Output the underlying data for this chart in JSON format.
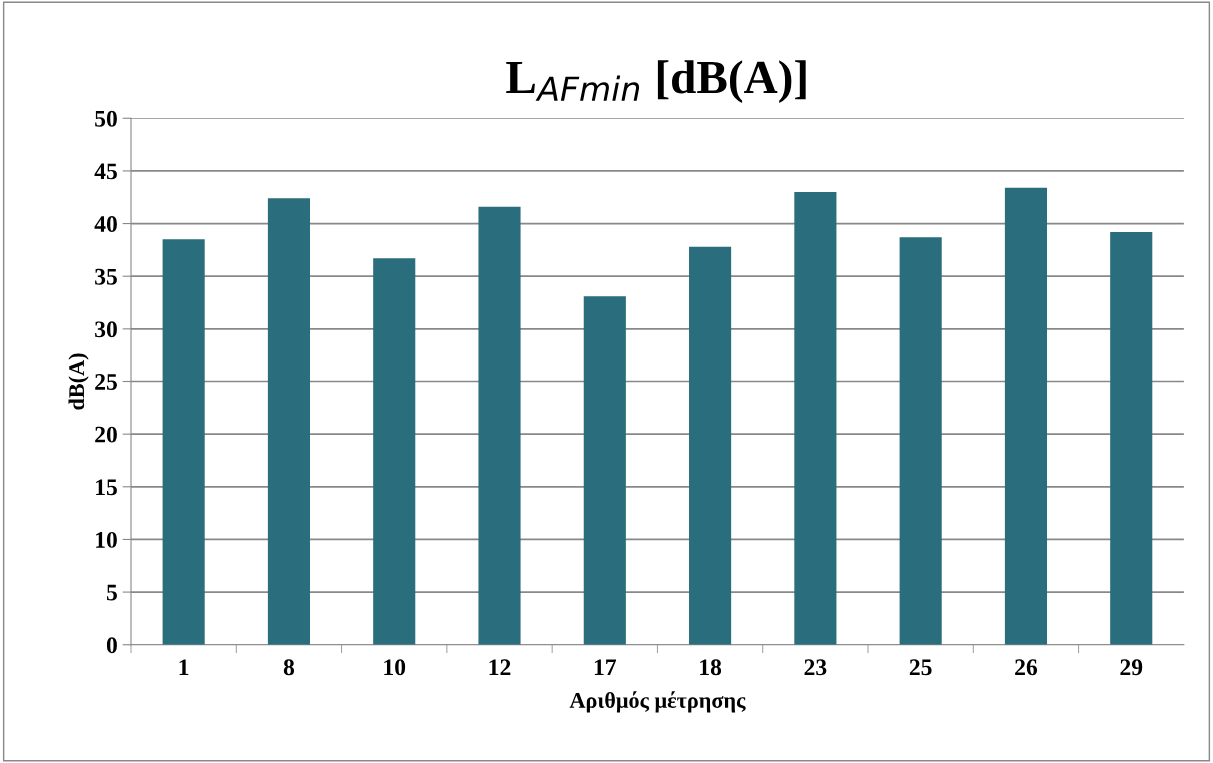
{
  "chart_data": {
    "type": "bar",
    "title": "L$_{AFmin}$ [dB(A)]",
    "xlabel": "Αριθμός μέτρησης",
    "ylabel": "dB(A)",
    "categories": [
      "1",
      "8",
      "10",
      "12",
      "17",
      "18",
      "23",
      "25",
      "26",
      "29"
    ],
    "values": [
      38.5,
      42.4,
      36.7,
      41.6,
      33.1,
      37.8,
      43.0,
      38.7,
      43.4,
      39.2
    ],
    "color": "#2a6d7c",
    "ylim": [
      0,
      50
    ],
    "yticks": [
      0,
      5,
      10,
      15,
      20,
      25,
      30,
      35,
      40,
      45,
      50
    ],
    "grid": "y",
    "legend": false
  }
}
